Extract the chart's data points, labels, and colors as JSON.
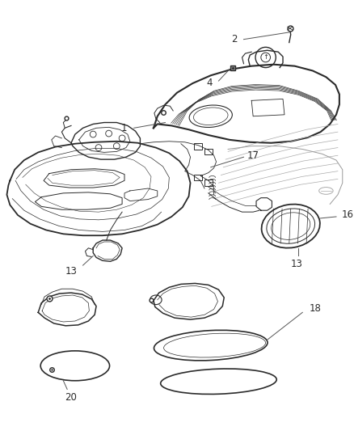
{
  "bg_color": "#ffffff",
  "line_color": "#2a2a2a",
  "label_color": "#1a1a1a",
  "font_size": 8.5,
  "fig_width": 4.38,
  "fig_height": 5.33,
  "dpi": 100
}
